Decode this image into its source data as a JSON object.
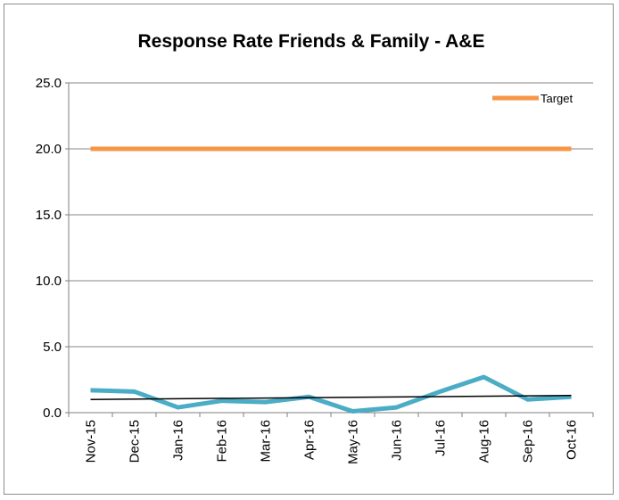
{
  "chart_data": {
    "type": "line",
    "title": "Response Rate Friends & Family - A&E",
    "xlabel": "",
    "ylabel": "",
    "categories": [
      "Nov-15",
      "Dec-15",
      "Jan-16",
      "Feb-16",
      "Mar-16",
      "Apr-16",
      "May-16",
      "Jun-16",
      "Jul-16",
      "Aug-16",
      "Sep-16",
      "Oct-16"
    ],
    "y_ticks": [
      "0.0",
      "5.0",
      "10.0",
      "15.0",
      "20.0",
      "25.0"
    ],
    "ylim": [
      0,
      25
    ],
    "grid": true,
    "legend_position": "top-right",
    "series": [
      {
        "values": [
          1.7,
          1.6,
          0.4,
          0.9,
          0.8,
          1.2,
          0.1,
          0.4,
          1.6,
          2.7,
          1.0,
          1.2
        ],
        "color": "#4bacc6"
      },
      {
        "name": "Target",
        "values": [
          20,
          20,
          20,
          20,
          20,
          20,
          20,
          20,
          20,
          20,
          20,
          20
        ],
        "color": "#f79646"
      }
    ],
    "trendline": {
      "start": 1.0,
      "end": 1.3,
      "color": "#000000"
    }
  }
}
